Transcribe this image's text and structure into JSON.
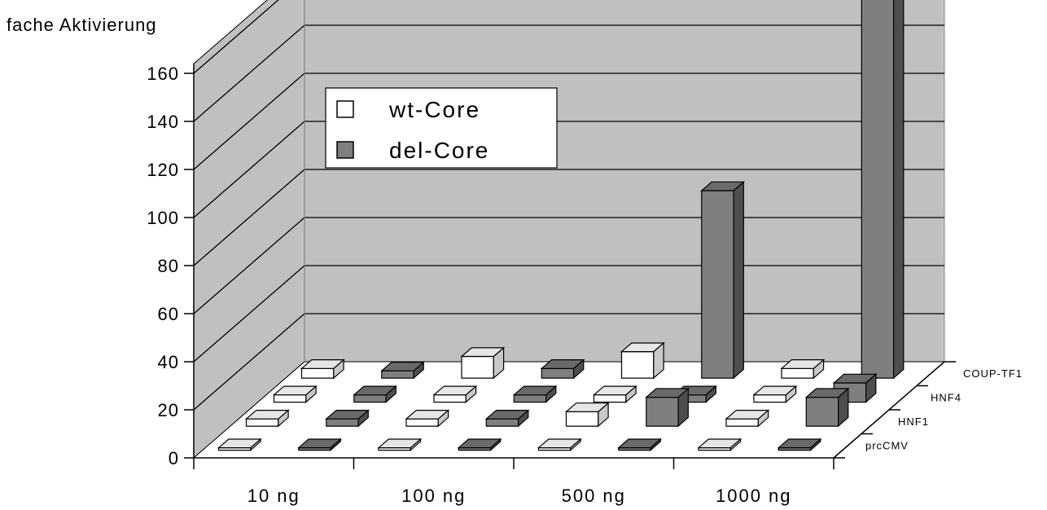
{
  "chart_data": {
    "type": "bar",
    "title": "",
    "ylabel": "fache Aktivierung",
    "xlabel": "",
    "ylim": [
      0,
      160
    ],
    "yticks": [
      "0",
      "20",
      "40",
      "60",
      "80",
      "100",
      "120",
      "140",
      "160"
    ],
    "categories": [
      "10 ng",
      "100 ng",
      "500 ng",
      "1000 ng"
    ],
    "depth_categories": [
      "prcCMV",
      "HNF1",
      "HNF4",
      "COUP-TF1"
    ],
    "grid": true,
    "legend_position": "top-left",
    "series": [
      {
        "name": "wt-Core",
        "color": "#ffffff",
        "values": [
          [
            1,
            1,
            1,
            1
          ],
          [
            3,
            3,
            6,
            3
          ],
          [
            3,
            3,
            3,
            3
          ],
          [
            4,
            9,
            11,
            4
          ]
        ]
      },
      {
        "name": "del-Core",
        "color": "#7f7f7f",
        "values": [
          [
            1,
            1,
            1,
            1
          ],
          [
            3,
            3,
            12,
            12
          ],
          [
            3,
            3,
            3,
            8
          ],
          [
            3,
            4,
            78,
            160
          ]
        ]
      }
    ]
  }
}
